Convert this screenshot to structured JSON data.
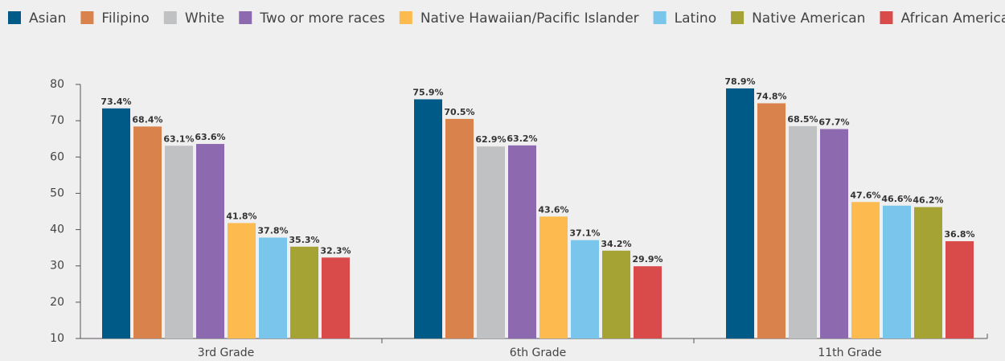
{
  "chart_data": {
    "type": "bar",
    "categories": [
      "3rd Grade",
      "6th Grade",
      "11th Grade"
    ],
    "series": [
      {
        "name": "Asian",
        "color": "#005a87",
        "values": [
          73.4,
          75.9,
          78.9
        ],
        "value_labels": [
          "73.4%",
          "75.9%",
          "78.9%"
        ]
      },
      {
        "name": "Filipino",
        "color": "#d9824c",
        "values": [
          68.4,
          70.5,
          74.8
        ],
        "value_labels": [
          "68.4%",
          "70.5%",
          "74.8%"
        ]
      },
      {
        "name": "White",
        "color": "#c0c1c3",
        "values": [
          63.1,
          62.9,
          68.5
        ],
        "value_labels": [
          "63.1%",
          "62.9%",
          "68.5%"
        ]
      },
      {
        "name": "Two or more races",
        "color": "#8d69b0",
        "values": [
          63.6,
          63.2,
          67.7
        ],
        "value_labels": [
          "63.6%",
          "63.2%",
          "67.7%"
        ]
      },
      {
        "name": "Native Hawaiian/Pacific Islander",
        "color": "#fdbb4f",
        "values": [
          41.8,
          43.6,
          47.6
        ],
        "value_labels": [
          "41.8%",
          "43.6%",
          "47.6%"
        ]
      },
      {
        "name": "Latino",
        "color": "#79c5ec",
        "values": [
          37.8,
          37.1,
          46.6
        ],
        "value_labels": [
          "37.8%",
          "37.1%",
          "46.6%"
        ]
      },
      {
        "name": "Native American",
        "color": "#a6a335",
        "values": [
          35.3,
          34.2,
          46.2
        ],
        "value_labels": [
          "35.3%",
          "34.2%",
          "46.2%"
        ]
      },
      {
        "name": "African American",
        "color": "#d94b4b",
        "values": [
          32.3,
          29.9,
          36.8
        ],
        "value_labels": [
          "32.3%",
          "29.9%",
          "36.8%"
        ]
      }
    ],
    "ylim": [
      10,
      80
    ],
    "yticks": [
      10,
      20,
      30,
      40,
      50,
      60,
      70,
      80
    ],
    "grid": false,
    "legend": "top"
  }
}
